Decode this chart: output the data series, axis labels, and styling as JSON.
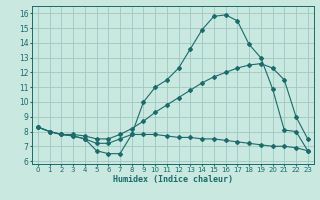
{
  "xlabel": "Humidex (Indice chaleur)",
  "background_color": "#c8e8e0",
  "grid_color": "#a0c8c0",
  "line_color": "#1a6b6b",
  "x_ticks": [
    0,
    1,
    2,
    3,
    4,
    5,
    6,
    7,
    8,
    9,
    10,
    11,
    12,
    13,
    14,
    15,
    16,
    17,
    18,
    19,
    20,
    21,
    22,
    23
  ],
  "y_ticks": [
    6,
    7,
    8,
    9,
    10,
    11,
    12,
    13,
    14,
    15,
    16
  ],
  "xlim": [
    -0.5,
    23.5
  ],
  "ylim": [
    5.8,
    16.5
  ],
  "series1_x": [
    0,
    1,
    2,
    3,
    4,
    5,
    6,
    7,
    8,
    9,
    10,
    11,
    12,
    13,
    14,
    15,
    16,
    17,
    18,
    19,
    20,
    21,
    22,
    23
  ],
  "series1_y": [
    8.3,
    8.0,
    7.8,
    7.7,
    7.5,
    6.7,
    6.5,
    6.5,
    7.8,
    10.0,
    11.0,
    11.5,
    12.3,
    13.6,
    14.9,
    15.8,
    15.9,
    15.5,
    13.9,
    13.0,
    10.9,
    8.1,
    8.0,
    6.7
  ],
  "series2_x": [
    0,
    1,
    2,
    3,
    4,
    5,
    6,
    7,
    8,
    9,
    10,
    11,
    12,
    13,
    14,
    15,
    16,
    17,
    18,
    19,
    20,
    21,
    22,
    23
  ],
  "series2_y": [
    8.3,
    8.0,
    7.8,
    7.8,
    7.7,
    7.5,
    7.5,
    7.8,
    8.2,
    8.7,
    9.3,
    9.8,
    10.3,
    10.8,
    11.3,
    11.7,
    12.0,
    12.3,
    12.5,
    12.6,
    12.3,
    11.5,
    9.0,
    7.5
  ],
  "series3_x": [
    0,
    1,
    2,
    3,
    4,
    5,
    6,
    7,
    8,
    9,
    10,
    11,
    12,
    13,
    14,
    15,
    16,
    17,
    18,
    19,
    20,
    21,
    22,
    23
  ],
  "series3_y": [
    8.3,
    8.0,
    7.8,
    7.7,
    7.5,
    7.2,
    7.2,
    7.5,
    7.8,
    7.8,
    7.8,
    7.7,
    7.6,
    7.6,
    7.5,
    7.5,
    7.4,
    7.3,
    7.2,
    7.1,
    7.0,
    7.0,
    6.9,
    6.7
  ]
}
